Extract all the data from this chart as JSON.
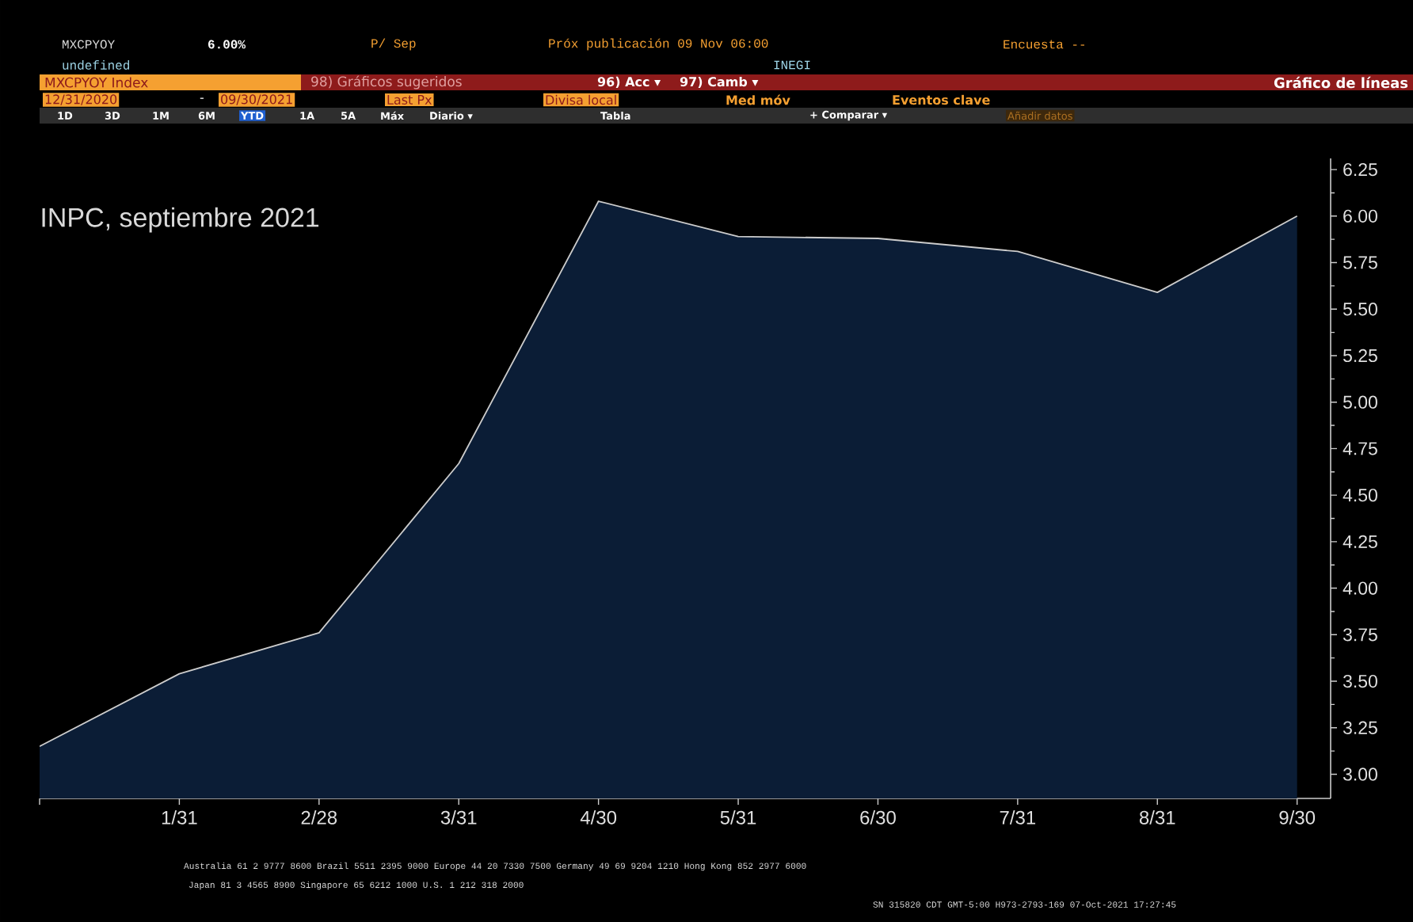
{
  "chart_data": {
    "type": "area",
    "title": "INPC, septiembre 2021",
    "categories": [
      null,
      "1/31",
      "2/28",
      "3/31",
      "4/30",
      "5/31",
      "6/30",
      "7/31",
      "8/31",
      "9/30"
    ],
    "series": [
      {
        "color": "#0b1d36",
        "values": [
          3.15,
          3.54,
          3.76,
          4.67,
          6.08,
          5.89,
          5.88,
          5.81,
          5.59,
          6.0
        ]
      }
    ],
    "ylim": [
      2.87,
      6.31
    ],
    "yticks": [
      {
        "value": 3,
        "label": "3.00"
      },
      3.25,
      {
        "value": 3.5,
        "label": "3.50"
      },
      3.75,
      {
        "value": 4,
        "label": "4.00"
      },
      4.25,
      {
        "value": 4.5,
        "label": "4.50"
      },
      4.75,
      {
        "value": 5,
        "label": "5.00"
      },
      5.25,
      {
        "value": 5.5,
        "label": "5.50"
      },
      5.75,
      {
        "value": 6,
        "label": "6.00"
      },
      6.25
    ],
    "annotations": [
      "MXCPYOY",
      "6.00%",
      "P/ Sep",
      "Próx publicación 09 Nov 06:00",
      "Encuesta --",
      "undefined",
      "INEGI",
      "MXCPYOY Index",
      "98) Gráficos sugeridos",
      "96) Acc ▾",
      "97) Camb ▾",
      "Gráfico de líneas",
      "12/31/2020",
      "-",
      "09/30/2021",
      "Last Px",
      "Divisa local",
      "Med móv",
      "Eventos clave",
      "1D",
      "3D",
      "1M",
      "6M",
      "YTD",
      "1A",
      "5A",
      "Máx",
      "Diario ▾",
      "Tabla",
      "+ Comparar ▾",
      "Añadir datos",
      "Australia 61 2 9777 8600 Brazil 5511 2395 9000 Europe 44 20 7330 7500 Germany 49 69 9204 1210 Hong Kong 852 2977 6000",
      "Japan 81 3 4565 8900    Singapore 65 6212 1000    U.S. 1 212 318 2000",
      "SN 315820 CDT  GMT-5:00 H973-2793-169 07-Oct-2021 17:27:45"
    ]
  }
}
